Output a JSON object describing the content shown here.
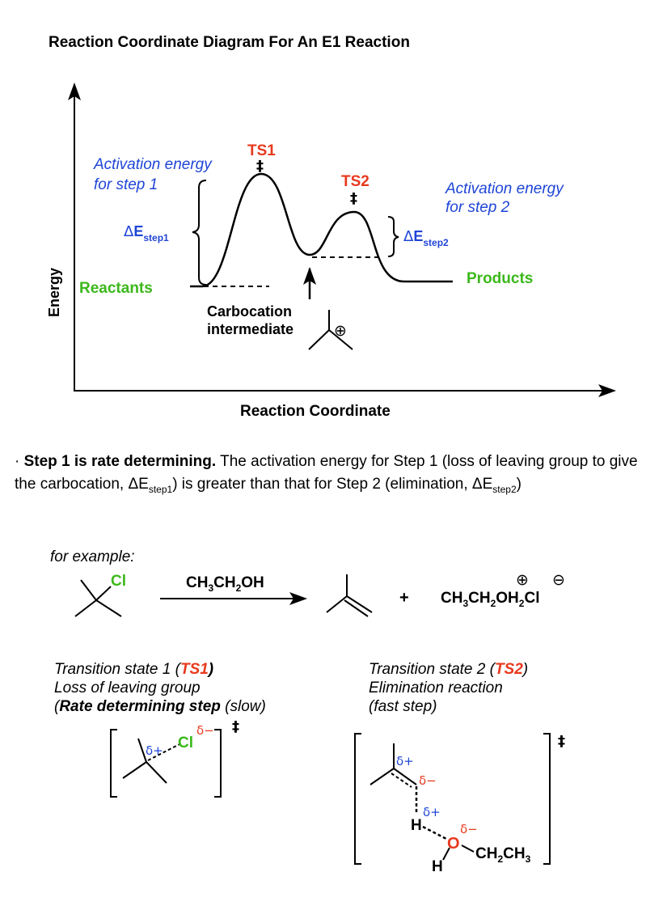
{
  "diagram": {
    "title": "Reaction Coordinate Diagram For An E1 Reaction",
    "y_axis_label": "Energy",
    "x_axis_label": "Reaction Coordinate",
    "ts1_label": "TS1",
    "ts2_label": "TS2",
    "double_dagger": "‡",
    "act1_line1": "Activation energy",
    "act1_line2": "for step 1",
    "act2_line1": "Activation energy",
    "act2_line2": "for step 2",
    "delta": "Δ",
    "e_letter": "E",
    "step1_sub": "step1",
    "step2_sub": "step2",
    "reactants": "Reactants",
    "products": "Products",
    "intermediate_line1": "Carbocation",
    "intermediate_line2": "intermediate",
    "plus_charge": "⊕",
    "minus_charge": "⊖",
    "colors": {
      "red": "#e8391e",
      "blue": "#1f45d6",
      "green": "#3cb81c",
      "black": "#000000"
    }
  },
  "paragraph": {
    "bullet": "·",
    "bold_text": "Step 1 is rate determining.",
    "text1": "The activation energy for Step 1 (loss of leaving group to give the carbocation, ΔE",
    "sub1": "step1",
    "text2": ") is greater than that for Step 2 (elimination, ΔE",
    "sub2": "step2",
    "text3": ")"
  },
  "example": {
    "label": "for example:",
    "cl": "Cl",
    "reagent_main": "CH",
    "reagent_sub3": "3",
    "reagent_ch": "CH",
    "reagent_sub2": "2",
    "reagent_oh": "OH",
    "plus_sign": "+",
    "product2": "CH3CH2OH2Cl"
  },
  "ts1": {
    "line1_pre": "Transition state 1 (",
    "line1_ts": "TS1",
    "line1_post": ")",
    "line2": "Loss of leaving group",
    "line3_pre": "(",
    "line3_bold": "Rate determining step",
    "line3_post": " (slow)",
    "delta_plus": "δ+",
    "delta_minus": "δ−",
    "cl": "Cl"
  },
  "ts2": {
    "line1_pre": "Transition state 2 (",
    "line1_ts": "TS2",
    "line1_post": ")",
    "line2": "Elimination reaction",
    "line3": "(fast step)",
    "delta_plus": "δ+",
    "delta_minus": "δ−",
    "h": "H",
    "o": "O",
    "ethyl": "CH2CH3"
  }
}
